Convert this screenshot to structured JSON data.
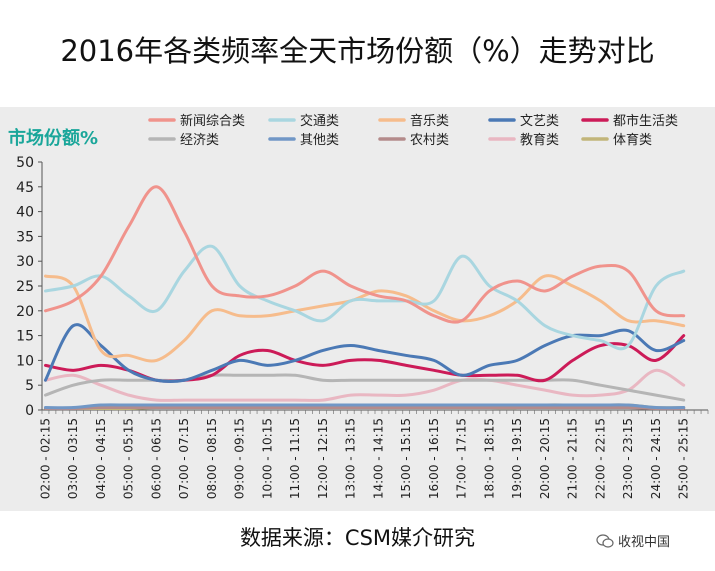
{
  "page": {
    "title": "2016年各类频率全天市场份额（%）走势对比",
    "source": "数据来源：CSM媒介研究",
    "watermark": "收视中国"
  },
  "chart_data": {
    "type": "line",
    "title": "2016年各类频率全天市场份额（%）走势对比",
    "ylabel": "市场份额%",
    "xlabel": "",
    "ylim": [
      0,
      50
    ],
    "yticks": [
      0,
      5,
      10,
      15,
      20,
      25,
      30,
      35,
      40,
      45,
      50
    ],
    "grid": false,
    "legend_position": "top",
    "x": [
      "02:00 - 02:15",
      "03:00 - 03:15",
      "04:00 - 04:15",
      "05:00 - 05:15",
      "06:00 - 06:15",
      "07:00 - 07:15",
      "08:00 - 08:15",
      "09:00 - 09:15",
      "10:00 - 10:15",
      "11:00 - 11:15",
      "12:00 - 12:15",
      "13:00 - 13:15",
      "14:00 - 14:15",
      "15:00 - 15:15",
      "16:00 - 16:15",
      "17:00 - 17:15",
      "18:00 - 18:15",
      "19:00 - 19:15",
      "20:00 - 20:15",
      "21:00 - 21:15",
      "22:00 - 22:15",
      "23:00 - 23:15",
      "24:00 - 24:15",
      "25:00 - 25:15"
    ],
    "x_hours": [
      2,
      3,
      4,
      5,
      6,
      7,
      8,
      9,
      10,
      11,
      12,
      13,
      14,
      15,
      16,
      17,
      18,
      19,
      20,
      21,
      22,
      23,
      24,
      25
    ],
    "x_range": [
      2,
      26
    ],
    "series": [
      {
        "name": "新闻综合类",
        "color": "#f0938c",
        "values": [
          20,
          22,
          27,
          37,
          45,
          36,
          25,
          23,
          23,
          25,
          28,
          25,
          23,
          22,
          19,
          18,
          24,
          26,
          24,
          27,
          29,
          28,
          20,
          19
        ]
      },
      {
        "name": "交通类",
        "color": "#a9d6e0",
        "values": [
          24,
          25,
          27,
          23,
          20,
          28,
          33,
          25,
          22,
          20,
          18,
          22,
          22,
          22,
          22,
          31,
          25,
          22,
          17,
          15,
          14,
          13,
          25,
          28
        ]
      },
      {
        "name": "音乐类",
        "color": "#f6bc8c",
        "values": [
          27,
          25,
          12,
          11,
          10,
          14,
          20,
          19,
          19,
          20,
          21,
          22,
          24,
          23,
          20,
          18,
          19,
          22,
          27,
          25,
          22,
          18,
          18,
          17
        ]
      },
      {
        "name": "文艺类",
        "color": "#4b79b5",
        "values": [
          6,
          17,
          13,
          8,
          6,
          6,
          8,
          10,
          9,
          10,
          12,
          13,
          12,
          11,
          10,
          7,
          9,
          10,
          13,
          15,
          15,
          16,
          12,
          14
        ]
      },
      {
        "name": "都市生活类",
        "color": "#cc1b58",
        "values": [
          9,
          8,
          9,
          8,
          6,
          6,
          7,
          11,
          12,
          10,
          9,
          10,
          10,
          9,
          8,
          7,
          7,
          7,
          6,
          10,
          13,
          13,
          10,
          15
        ]
      },
      {
        "name": "经济类",
        "color": "#b5b5b5",
        "values": [
          3,
          5,
          6,
          6,
          6,
          6,
          7,
          7,
          7,
          7,
          6,
          6,
          6,
          6,
          6,
          6,
          6,
          6,
          6,
          6,
          5,
          4,
          3,
          2
        ]
      },
      {
        "name": "其他类",
        "color": "#7197c6",
        "values": [
          0.5,
          0.5,
          1,
          1,
          1,
          1,
          1,
          1,
          1,
          1,
          1,
          1,
          1,
          1,
          1,
          1,
          1,
          1,
          1,
          1,
          1,
          1,
          0.5,
          0.5
        ]
      },
      {
        "name": "农村类",
        "color": "#b48b8b",
        "values": [
          0.3,
          0.3,
          0.5,
          0.5,
          0.5,
          0.5,
          0.5,
          0.5,
          0.5,
          0.5,
          0.5,
          0.5,
          0.5,
          0.5,
          0.5,
          0.5,
          0.5,
          0.5,
          0.5,
          0.5,
          0.5,
          0.5,
          0.3,
          0.3
        ]
      },
      {
        "name": "教育类",
        "color": "#e9b7c2",
        "values": [
          6,
          7,
          5,
          3,
          2,
          2,
          2,
          2,
          2,
          2,
          2,
          3,
          3,
          3,
          4,
          6,
          6,
          5,
          4,
          3,
          3,
          4,
          8,
          5
        ]
      },
      {
        "name": "体育类",
        "color": "#c2b57a",
        "values": [
          0.3,
          0.3,
          0.3,
          0.3,
          0.5,
          0.5,
          0.5,
          0.5,
          0.5,
          0.5,
          0.5,
          0.5,
          0.5,
          0.5,
          0.5,
          0.5,
          0.5,
          0.5,
          1,
          1,
          1,
          1,
          0.5,
          0.5
        ]
      }
    ]
  }
}
